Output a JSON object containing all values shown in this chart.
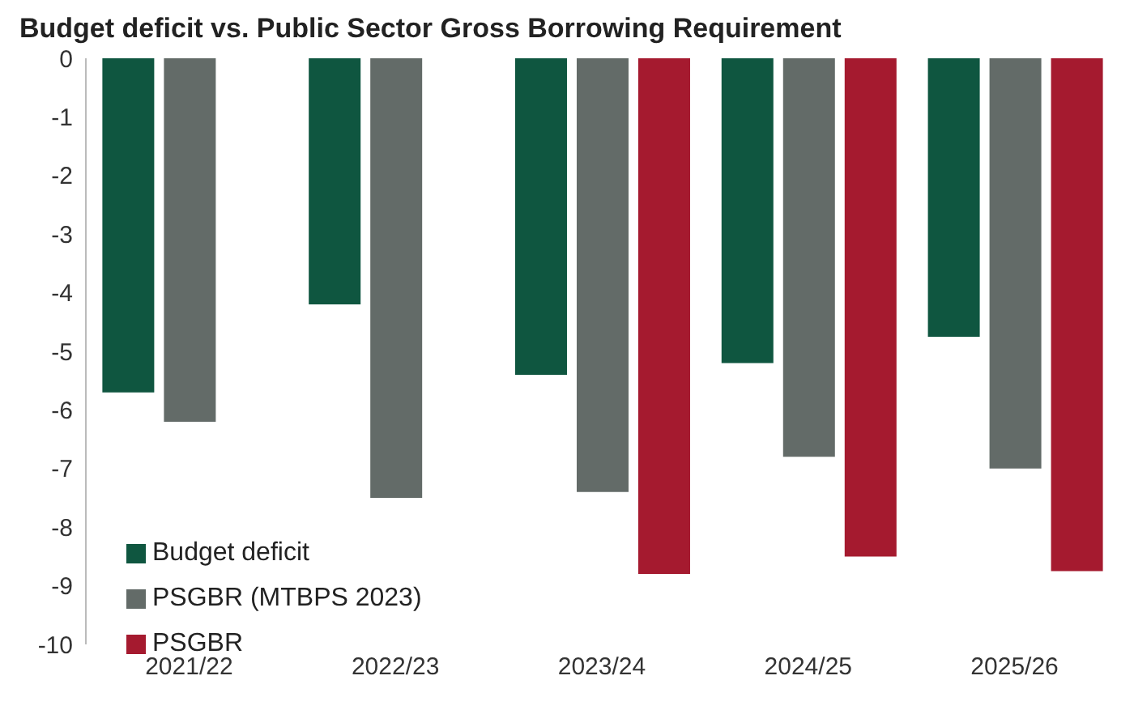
{
  "chart_data": {
    "type": "bar",
    "title": "Budget deficit vs. Public Sector Gross Borrowing Requirement",
    "categories": [
      "2021/22",
      "2022/23",
      "2023/24",
      "2024/25",
      "2025/26"
    ],
    "series": [
      {
        "name": "Budget deficit",
        "color": "#0f5640",
        "values": [
          -5.7,
          -4.2,
          -5.4,
          -5.2,
          -4.75
        ]
      },
      {
        "name": "PSGBR (MTBPS 2023)",
        "color": "#636b68",
        "values": [
          -6.2,
          -7.5,
          -7.4,
          -6.8,
          -7.0
        ]
      },
      {
        "name": "PSGBR",
        "color": "#a51a2f",
        "values": [
          null,
          null,
          -8.8,
          -8.5,
          -8.75
        ]
      }
    ],
    "ylim": [
      -10,
      0
    ],
    "yticks": [
      -10,
      -9,
      -8,
      -7,
      -6,
      -5,
      -4,
      -3,
      -2,
      -1,
      0
    ],
    "grid": false,
    "legend": "bottom left"
  }
}
